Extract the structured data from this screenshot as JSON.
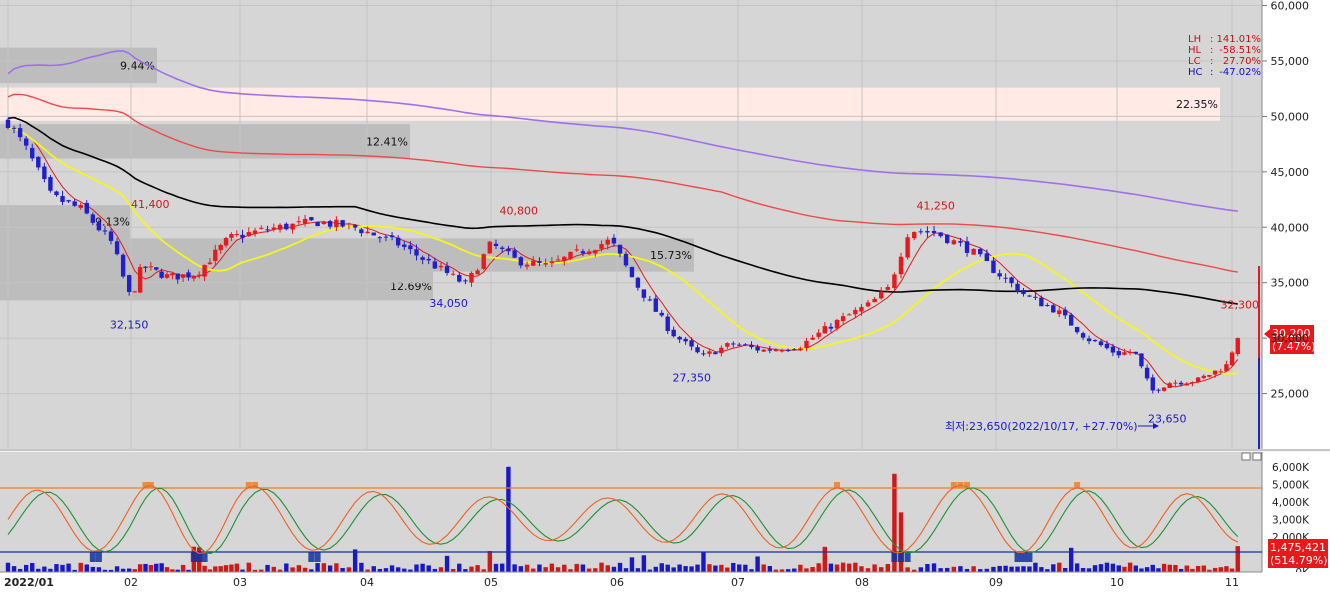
{
  "colors": {
    "background": "#d6d6d6",
    "up_candle": "#e8191c",
    "down_candle": "#1f1fd0",
    "ma5": "#dd1c1c",
    "ma20": "#f5f520",
    "ma60": "#000000",
    "ma120": "#f04848",
    "ma240": "#a070e8",
    "volume_up": "#d01818",
    "volume_down": "#1818c8",
    "osc_fast": "#f06020",
    "osc_slow": "#209030",
    "ref_line_orange": "#f08020",
    "ref_line_blue": "#1030a0",
    "price_tag_bg": "#e8191c"
  },
  "stats_box": [
    {
      "label": "LH",
      "sep": ":",
      "value": "141.01%",
      "color": "#c81010"
    },
    {
      "label": "HL",
      "sep": ":",
      "value": "-58.51%",
      "color": "#c81010"
    },
    {
      "label": "LC",
      "sep": ":",
      "value": "27.70%",
      "color": "#c81010"
    },
    {
      "label": "HC",
      "sep": ":",
      "value": "-47.02%",
      "color": "#1010c8"
    }
  ],
  "current_price": {
    "value": "30,200",
    "change": "(7.47%)"
  },
  "volume_tag": {
    "value": "1,475,421",
    "change": "(514.79%)"
  },
  "lowest_note": "최저:23,650(2022/10/17, +27.70%)",
  "chart_data": {
    "type": "candlestick",
    "x_labels": [
      "2022/01",
      "02",
      "03",
      "04",
      "05",
      "06",
      "07",
      "08",
      "09",
      "10",
      "11"
    ],
    "y_ticks": [
      "60,000",
      "55,000",
      "50,000",
      "45,000",
      "40,000",
      "35,000",
      "30,000",
      "25,000"
    ],
    "ylim": [
      20000,
      60500
    ],
    "volume_ticks": [
      "6,000K",
      "5,000K",
      "4,000K",
      "3,000K",
      "2,000K",
      "1,000K",
      "0K"
    ],
    "price_labels": [
      {
        "text": "41,400",
        "color": "#d01818"
      },
      {
        "text": "32,150",
        "color": "#1818c8"
      },
      {
        "text": "40,800",
        "color": "#d01818"
      },
      {
        "text": "34,050",
        "color": "#1818c8"
      },
      {
        "text": "27,350",
        "color": "#1818c8"
      },
      {
        "text": "41,250",
        "color": "#d01818"
      },
      {
        "text": "23,650",
        "color": "#1818c8"
      },
      {
        "text": "32,300",
        "color": "#d01818"
      }
    ],
    "zones": [
      {
        "label": "9.44%",
        "low": 53000,
        "high": 56200
      },
      {
        "label": "22.35%",
        "low": 49600,
        "high": 52600
      },
      {
        "label": "12.41%",
        "low": 46200,
        "high": 49300
      },
      {
        "label": "9.13%",
        "low": 39000,
        "high": 42000
      },
      {
        "label": "15.73%",
        "low": 36000,
        "high": 39000
      },
      {
        "label": "12.69%",
        "low": 33400,
        "high": 36000
      }
    ],
    "moving_averages": [
      {
        "name": "MA5",
        "color": "#dd1c1c"
      },
      {
        "name": "MA20",
        "color": "#f5f520"
      },
      {
        "name": "MA60",
        "color": "#000000"
      },
      {
        "name": "MA120",
        "color": "#f04848"
      },
      {
        "name": "MA240",
        "color": "#a070e8"
      }
    ],
    "anchors": [
      {
        "m": 0.0,
        "p": 49500
      },
      {
        "m": 0.15,
        "p": 47000
      },
      {
        "m": 0.35,
        "p": 42800
      },
      {
        "m": 0.6,
        "p": 41600
      },
      {
        "m": 0.85,
        "p": 38500
      },
      {
        "m": 0.95,
        "p": 35000
      },
      {
        "m": 1.0,
        "p": 33500
      },
      {
        "m": 1.1,
        "p": 36500
      },
      {
        "m": 1.35,
        "p": 35500
      },
      {
        "m": 1.6,
        "p": 35800
      },
      {
        "m": 1.9,
        "p": 39000
      },
      {
        "m": 2.2,
        "p": 39800
      },
      {
        "m": 2.6,
        "p": 40500
      },
      {
        "m": 2.9,
        "p": 40000
      },
      {
        "m": 3.25,
        "p": 38500
      },
      {
        "m": 3.55,
        "p": 36500
      },
      {
        "m": 3.8,
        "p": 34800
      },
      {
        "m": 4.0,
        "p": 38500
      },
      {
        "m": 4.2,
        "p": 37000
      },
      {
        "m": 4.45,
        "p": 36500
      },
      {
        "m": 4.75,
        "p": 38000
      },
      {
        "m": 4.95,
        "p": 38800
      },
      {
        "m": 5.15,
        "p": 35000
      },
      {
        "m": 5.45,
        "p": 30500
      },
      {
        "m": 5.7,
        "p": 28300
      },
      {
        "m": 5.95,
        "p": 29500
      },
      {
        "m": 6.2,
        "p": 28900
      },
      {
        "m": 6.5,
        "p": 29300
      },
      {
        "m": 6.8,
        "p": 31500
      },
      {
        "m": 7.05,
        "p": 33000
      },
      {
        "m": 7.2,
        "p": 34500
      },
      {
        "m": 7.35,
        "p": 39800
      },
      {
        "m": 7.55,
        "p": 39500
      },
      {
        "m": 7.8,
        "p": 38000
      },
      {
        "m": 8.0,
        "p": 36000
      },
      {
        "m": 8.25,
        "p": 33800
      },
      {
        "m": 8.5,
        "p": 32500
      },
      {
        "m": 8.75,
        "p": 30000
      },
      {
        "m": 9.0,
        "p": 28600
      },
      {
        "m": 9.15,
        "p": 28800
      },
      {
        "m": 9.3,
        "p": 25200
      },
      {
        "m": 9.45,
        "p": 26000
      },
      {
        "m": 9.7,
        "p": 26200
      },
      {
        "m": 9.95,
        "p": 27500
      },
      {
        "m": 10.05,
        "p": 30200
      }
    ]
  }
}
